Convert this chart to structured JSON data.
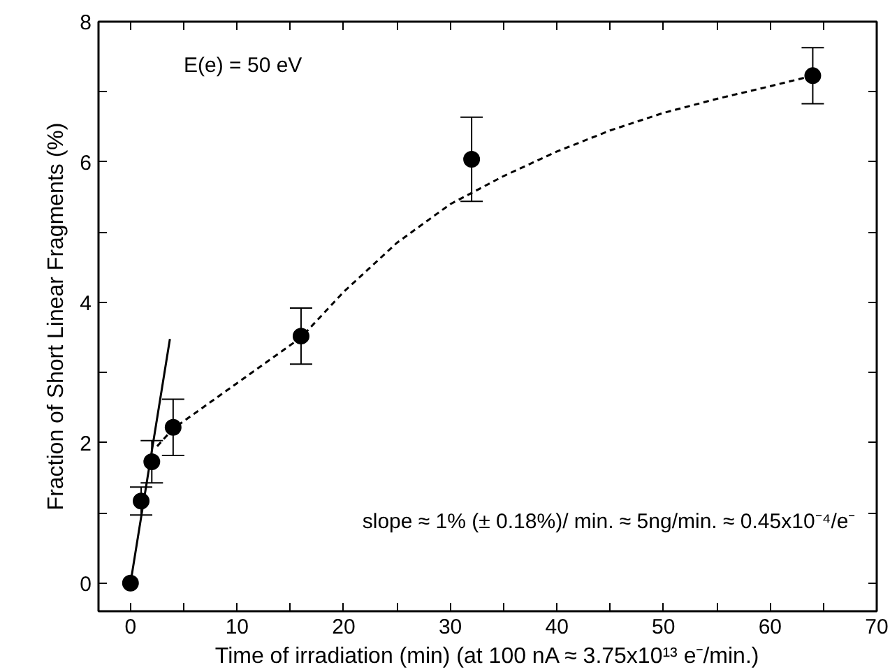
{
  "chart_data": {
    "type": "scatter",
    "xlabel": "Time of irradiation (min) (at 100 nA ≈ 3.75x10¹³ e⁻/min.)",
    "ylabel": "Fraction of Short Linear Fragments (%)",
    "annotations": [
      "E(e) = 50 eV",
      "slope ≈ 1% (± 0.18%)/ min. ≈ 5ng/min. ≈ 0.45x10⁻⁴/e⁻"
    ],
    "xlim": [
      -3,
      70
    ],
    "ylim": [
      -0.4,
      8
    ],
    "xticks": [
      0,
      {
        "value": 5,
        "label": null
      },
      10,
      {
        "value": 15,
        "label": null
      },
      20,
      {
        "value": 25,
        "label": null
      },
      30,
      {
        "value": 35,
        "label": null
      },
      40,
      {
        "value": 45,
        "label": null
      },
      50,
      {
        "value": 55,
        "label": null
      },
      60,
      {
        "value": 65,
        "label": null
      },
      70
    ],
    "yticks": [
      0,
      {
        "value": 1,
        "label": null
      },
      2,
      {
        "value": 3,
        "label": null
      },
      4,
      {
        "value": 5,
        "label": null
      },
      6,
      {
        "value": 7,
        "label": null
      },
      8
    ],
    "grid": false,
    "series": [
      {
        "color": "#000000",
        "marker": "circle",
        "x": [
          0,
          1,
          2,
          4,
          16,
          32,
          64
        ],
        "values": [
          0,
          1.17,
          1.73,
          2.22,
          3.52,
          6.04,
          7.23
        ],
        "errors": [
          null,
          0.2,
          0.3,
          0.4,
          0.4,
          0.6,
          0.4
        ]
      },
      {
        "type": "line",
        "color": "#000000",
        "marker": "none",
        "line_style": "dashed",
        "x": [
          2.5,
          4,
          10,
          16,
          20,
          25,
          30,
          35,
          40,
          45,
          50,
          55,
          60,
          64
        ],
        "values": [
          1.95,
          2.2,
          2.85,
          3.5,
          4.15,
          4.85,
          5.4,
          5.8,
          6.15,
          6.45,
          6.7,
          6.9,
          7.08,
          7.23
        ]
      },
      {
        "type": "line",
        "color": "#000000",
        "marker": "none",
        "line_style": "solid",
        "x": [
          0,
          3.7
        ],
        "values": [
          0,
          3.48
        ]
      }
    ]
  }
}
